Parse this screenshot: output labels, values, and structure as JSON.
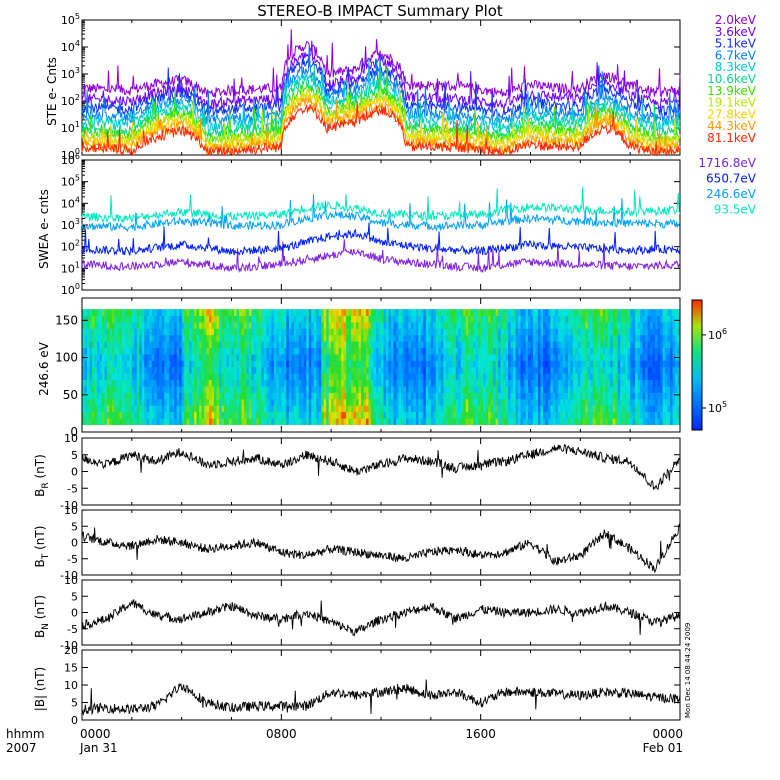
{
  "title": "STEREO-B IMPACT Summary Plot",
  "time_axis": {
    "row1_label": "hhmm",
    "row2_label": "2007",
    "ticks": [
      {
        "hour": 0,
        "time": "0000",
        "date": "Jan 31"
      },
      {
        "hour": 8,
        "time": "0800",
        "date": ""
      },
      {
        "hour": 16,
        "time": "1600",
        "date": ""
      },
      {
        "hour": 24,
        "time": "0000",
        "date": "Feb 01"
      }
    ],
    "range_hours": [
      0,
      24
    ]
  },
  "side_stamp": "Mon Dec 14 08:44:24 2009",
  "colors": {
    "ste": [
      "#9000d8",
      "#7000ff",
      "#1030ff",
      "#0080ff",
      "#00c8d8",
      "#00d890",
      "#40e000",
      "#b8e800",
      "#ffd000",
      "#ff9800",
      "#ff2800"
    ],
    "swea": [
      "#8020e0",
      "#0020ff",
      "#00a0ff",
      "#00e8c0"
    ]
  },
  "chart_data": [
    {
      "name": "ste",
      "type": "line",
      "ylabel": "STE e- Cnts",
      "yscale": "log",
      "ylim": [
        1,
        100000
      ],
      "ytick_labels": [
        {
          "base": "10",
          "exp": "0"
        },
        {
          "base": "10",
          "exp": "1"
        },
        {
          "base": "10",
          "exp": "2"
        },
        {
          "base": "10",
          "exp": "3"
        },
        {
          "base": "10",
          "exp": "4"
        },
        {
          "base": "10",
          "exp": "5"
        }
      ],
      "legend": [
        "2.0keV",
        "3.6keV",
        "5.1keV",
        "6.7keV",
        "8.3keV",
        "10.6keV",
        "13.9keV",
        "19.1keV",
        "27.8keV",
        "44.3keV",
        "81.1keV"
      ],
      "series": [
        {
          "name": "2.0keV",
          "x": [
            0,
            2,
            4,
            5,
            6,
            8,
            9,
            9.8,
            11,
            12,
            13,
            15,
            17,
            18,
            19,
            20,
            21,
            22,
            23,
            24
          ],
          "values": [
            300,
            250,
            600,
            180,
            250,
            300,
            12000,
            900,
            1500,
            6000,
            400,
            350,
            180,
            400,
            300,
            280,
            900,
            350,
            200,
            250
          ]
        },
        {
          "name": "3.6keV",
          "x": [
            0,
            2,
            4,
            5,
            6,
            8,
            9,
            9.8,
            11,
            12,
            13,
            15,
            17,
            18,
            19,
            20,
            21,
            22,
            23,
            24
          ],
          "values": [
            120,
            100,
            300,
            70,
            100,
            120,
            5000,
            400,
            700,
            3000,
            150,
            120,
            70,
            180,
            140,
            120,
            500,
            150,
            80,
            100
          ]
        },
        {
          "name": "5.1keV",
          "x": [
            0,
            2,
            4,
            5,
            6,
            8,
            9,
            9.8,
            11,
            12,
            13,
            15,
            17,
            18,
            19,
            20,
            21,
            22,
            23,
            24
          ],
          "values": [
            60,
            50,
            200,
            35,
            50,
            60,
            3000,
            250,
            400,
            1500,
            70,
            60,
            35,
            90,
            70,
            60,
            300,
            80,
            40,
            50
          ]
        },
        {
          "name": "6.7keV",
          "x": [
            0,
            2,
            4,
            5,
            6,
            8,
            9,
            9.8,
            11,
            12,
            13,
            15,
            17,
            18,
            19,
            20,
            21,
            22,
            23,
            24
          ],
          "values": [
            30,
            25,
            120,
            18,
            25,
            30,
            1500,
            150,
            250,
            800,
            40,
            30,
            18,
            50,
            40,
            30,
            150,
            40,
            22,
            28
          ]
        },
        {
          "name": "8.3keV",
          "x": [
            0,
            2,
            4,
            5,
            6,
            8,
            9,
            9.8,
            11,
            12,
            13,
            15,
            17,
            18,
            19,
            20,
            21,
            22,
            23,
            24
          ],
          "values": [
            18,
            15,
            80,
            10,
            15,
            18,
            900,
            100,
            150,
            500,
            25,
            18,
            10,
            30,
            25,
            18,
            100,
            25,
            12,
            16
          ]
        },
        {
          "name": "10.6keV",
          "x": [
            0,
            2,
            4,
            5,
            6,
            8,
            9,
            9.8,
            11,
            12,
            13,
            15,
            17,
            18,
            19,
            20,
            21,
            22,
            23,
            24
          ],
          "values": [
            10,
            8,
            50,
            6,
            8,
            10,
            500,
            60,
            100,
            300,
            14,
            10,
            6,
            18,
            14,
            10,
            60,
            14,
            7,
            9
          ]
        },
        {
          "name": "13.9keV",
          "x": [
            0,
            2,
            4,
            5,
            6,
            8,
            9,
            9.8,
            11,
            12,
            13,
            15,
            17,
            18,
            19,
            20,
            21,
            22,
            23,
            24
          ],
          "values": [
            7,
            5,
            35,
            4,
            5,
            7,
            300,
            40,
            70,
            200,
            9,
            7,
            4,
            12,
            9,
            7,
            40,
            9,
            4,
            6
          ]
        },
        {
          "name": "19.1keV",
          "x": [
            0,
            2,
            4,
            5,
            6,
            8,
            9,
            9.8,
            11,
            12,
            13,
            15,
            17,
            18,
            19,
            20,
            21,
            22,
            23,
            24
          ],
          "values": [
            5,
            3.5,
            25,
            3,
            3.5,
            5,
            200,
            30,
            50,
            150,
            6,
            5,
            3,
            8,
            6,
            5,
            30,
            6,
            3,
            4
          ]
        },
        {
          "name": "27.8keV",
          "x": [
            0,
            2,
            4,
            5,
            6,
            8,
            9,
            9.8,
            11,
            12,
            13,
            15,
            17,
            18,
            19,
            20,
            21,
            22,
            23,
            24
          ],
          "values": [
            3.5,
            2.5,
            18,
            2,
            2.5,
            3.5,
            150,
            20,
            35,
            100,
            4,
            3.5,
            2,
            5,
            4,
            3.5,
            20,
            4,
            2,
            3
          ]
        },
        {
          "name": "44.3keV",
          "x": [
            0,
            2,
            4,
            5,
            6,
            8,
            9,
            9.8,
            11,
            12,
            13,
            15,
            17,
            18,
            19,
            20,
            21,
            22,
            23,
            24
          ],
          "values": [
            2.5,
            1.8,
            12,
            1.5,
            1.8,
            2.5,
            100,
            15,
            25,
            70,
            3,
            2.5,
            1.5,
            3.5,
            3,
            2.5,
            15,
            3,
            1.5,
            2
          ]
        },
        {
          "name": "81.1keV",
          "x": [
            0,
            2,
            4,
            5,
            6,
            8,
            9,
            9.8,
            11,
            12,
            13,
            15,
            17,
            18,
            19,
            20,
            21,
            22,
            23,
            24
          ],
          "values": [
            2,
            1.4,
            8,
            1.2,
            1.4,
            2,
            60,
            10,
            15,
            50,
            2,
            2,
            1.2,
            2.5,
            2,
            2,
            10,
            2,
            1.2,
            1.5
          ]
        }
      ]
    },
    {
      "name": "swea",
      "type": "line",
      "ylabel": "SWEA e- cnts",
      "yscale": "log",
      "ylim": [
        1,
        1000000
      ],
      "ytick_labels": [
        {
          "base": "10",
          "exp": "0"
        },
        {
          "base": "10",
          "exp": "1"
        },
        {
          "base": "10",
          "exp": "2"
        },
        {
          "base": "10",
          "exp": "3"
        },
        {
          "base": "10",
          "exp": "4"
        },
        {
          "base": "10",
          "exp": "5"
        },
        {
          "base": "10",
          "exp": "6"
        }
      ],
      "legend": [
        "1716.8eV",
        "650.7eV",
        "246.6eV",
        "93.5eV"
      ],
      "series": [
        {
          "name": "1716.8eV",
          "x": [
            0,
            2,
            4,
            6,
            8,
            9,
            10,
            11,
            12,
            14,
            16,
            18,
            20,
            22,
            24
          ],
          "values": [
            15,
            12,
            20,
            10,
            15,
            25,
            40,
            60,
            25,
            15,
            10,
            20,
            15,
            12,
            15
          ]
        },
        {
          "name": "650.7eV",
          "x": [
            0,
            2,
            4,
            6,
            8,
            9,
            10,
            11,
            12,
            14,
            16,
            18,
            20,
            22,
            24
          ],
          "values": [
            80,
            60,
            120,
            60,
            80,
            150,
            300,
            400,
            150,
            80,
            60,
            120,
            90,
            70,
            80
          ]
        },
        {
          "name": "246.6eV",
          "x": [
            0,
            2,
            4,
            6,
            8,
            9,
            10,
            11,
            12,
            14,
            16,
            18,
            20,
            22,
            24
          ],
          "values": [
            900,
            800,
            1500,
            900,
            1000,
            2000,
            3000,
            2500,
            1200,
            900,
            1000,
            2000,
            1500,
            1200,
            1100
          ]
        },
        {
          "name": "93.5eV",
          "x": [
            0,
            2,
            4,
            6,
            8,
            9,
            10,
            11,
            12,
            14,
            16,
            18,
            20,
            22,
            24
          ],
          "values": [
            2500,
            2000,
            4000,
            2500,
            3000,
            6000,
            8000,
            6000,
            3500,
            2500,
            3000,
            7000,
            5000,
            4000,
            5000
          ]
        }
      ]
    },
    {
      "name": "pad",
      "type": "heatmap",
      "ylabel": "246.6 eV",
      "ylim": [
        0,
        180
      ],
      "yticks": [
        0,
        50,
        100,
        150
      ],
      "colorbar": {
        "tick_labels": [
          {
            "base": "10",
            "exp": "6"
          },
          {
            "base": "10",
            "exp": "5"
          }
        ],
        "range": [
          50000,
          3000000
        ]
      }
    },
    {
      "name": "br",
      "type": "line",
      "ylabel": "B",
      "ylabel_sub": "R",
      "ylabel_unit": "(nT)",
      "ylim": [
        -10,
        10
      ],
      "yticks": [
        10,
        5,
        0,
        -5,
        -10
      ],
      "x": [
        0,
        1,
        2,
        3,
        4,
        5,
        6,
        7,
        8,
        9,
        10,
        11,
        12,
        13,
        14,
        15,
        16,
        17,
        18,
        19,
        20,
        21,
        22,
        23,
        24
      ],
      "values": [
        4,
        2,
        5,
        3,
        6,
        2,
        3,
        4,
        2,
        5,
        3,
        0,
        2,
        4,
        3,
        1,
        2,
        3,
        5,
        7,
        6,
        4,
        3,
        -5,
        4
      ]
    },
    {
      "name": "bt",
      "type": "line",
      "ylabel": "B",
      "ylabel_sub": "T",
      "ylabel_unit": "(nT)",
      "ylim": [
        -10,
        10
      ],
      "yticks": [
        10,
        5,
        0,
        -5,
        -10
      ],
      "x": [
        0,
        1,
        2,
        3,
        4,
        5,
        6,
        7,
        8,
        9,
        10,
        11,
        12,
        13,
        14,
        15,
        16,
        17,
        18,
        19,
        20,
        21,
        22,
        23,
        24
      ],
      "values": [
        2,
        0,
        -1,
        1,
        0,
        -2,
        -1,
        0,
        -3,
        -4,
        -2,
        -3,
        -4,
        -5,
        -3,
        -2,
        -4,
        -3,
        0,
        -6,
        -4,
        3,
        -2,
        -8,
        5
      ]
    },
    {
      "name": "bn",
      "type": "line",
      "ylabel": "B",
      "ylabel_sub": "N",
      "ylabel_unit": "(nT)",
      "ylim": [
        -10,
        10
      ],
      "yticks": [
        10,
        5,
        0,
        -5,
        -10
      ],
      "x": [
        0,
        1,
        2,
        3,
        4,
        5,
        6,
        7,
        8,
        9,
        10,
        11,
        12,
        13,
        14,
        15,
        16,
        17,
        18,
        19,
        20,
        21,
        22,
        23,
        24
      ],
      "values": [
        -4,
        -2,
        3,
        -1,
        -2,
        0,
        2,
        -1,
        -2,
        0,
        -3,
        -6,
        -2,
        0,
        2,
        -2,
        1,
        0,
        0,
        1,
        0,
        2,
        0,
        -3,
        -1
      ]
    },
    {
      "name": "bmag",
      "type": "line",
      "ylabel": "|B| (nT)",
      "ylim": [
        0,
        20
      ],
      "yticks": [
        20,
        15,
        10,
        5,
        0
      ],
      "x": [
        0,
        1,
        2,
        3,
        4,
        5,
        6,
        7,
        8,
        9,
        10,
        11,
        12,
        13,
        14,
        15,
        16,
        17,
        18,
        19,
        20,
        21,
        22,
        23,
        24
      ],
      "values": [
        3,
        3.5,
        3,
        4,
        10,
        5,
        3.5,
        4,
        4,
        4,
        8,
        7,
        8,
        9,
        7,
        8,
        5,
        8,
        8,
        7.5,
        7,
        8,
        7.5,
        6.5,
        6
      ]
    }
  ]
}
